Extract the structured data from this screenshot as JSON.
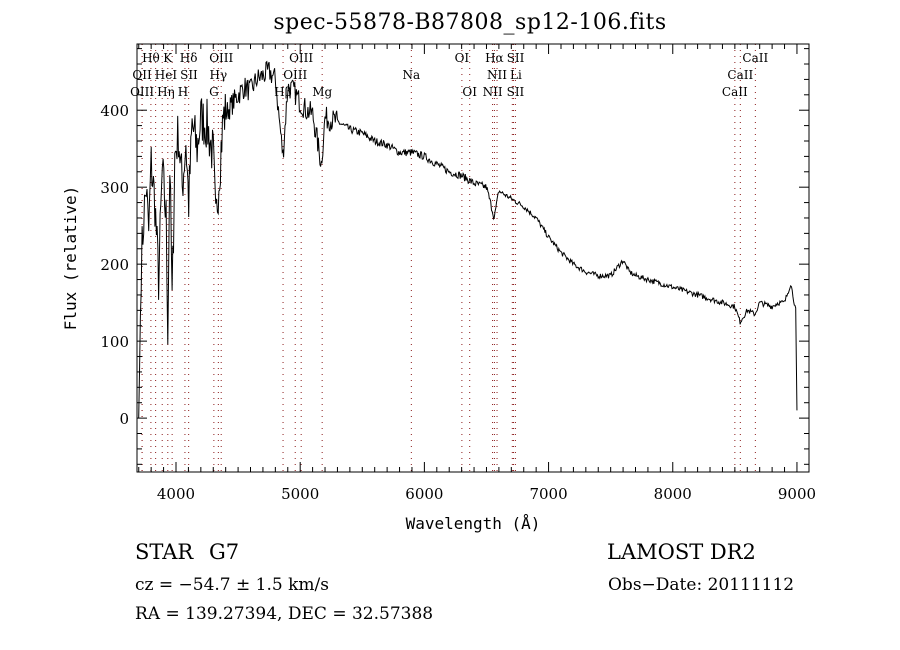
{
  "chart_data": {
    "type": "line",
    "title": "spec-55878-B87808_sp12-106.fits",
    "xlabel": "Wavelength (Å)",
    "ylabel": "Flux (relative)",
    "xlim": [
      3686,
      9097
    ],
    "ylim": [
      -70,
      486
    ],
    "xticks": [
      4000,
      5000,
      6000,
      7000,
      8000,
      9000
    ],
    "yticks": [
      0,
      100,
      200,
      300,
      400
    ],
    "grid": false,
    "series": [
      {
        "name": "flux",
        "color": "#000000",
        "x": [
          3700,
          3720,
          3740,
          3760,
          3780,
          3800,
          3830,
          3860,
          3890,
          3920,
          3934,
          3950,
          3969,
          3990,
          4020,
          4050,
          4080,
          4102,
          4130,
          4170,
          4200,
          4250,
          4300,
          4320,
          4340,
          4380,
          4420,
          4460,
          4500,
          4550,
          4600,
          4650,
          4700,
          4750,
          4800,
          4861,
          4900,
          4950,
          5000,
          5050,
          5100,
          5170,
          5200,
          5300,
          5400,
          5500,
          5600,
          5700,
          5800,
          5900,
          6000,
          6100,
          6200,
          6300,
          6400,
          6500,
          6563,
          6600,
          6700,
          6800,
          6900,
          7000,
          7100,
          7200,
          7300,
          7400,
          7500,
          7600,
          7650,
          7700,
          7800,
          7900,
          8000,
          8100,
          8200,
          8300,
          8400,
          8500,
          8542,
          8600,
          8662,
          8700,
          8800,
          8850,
          8900,
          8950,
          8990,
          9000
        ],
        "y": [
          0,
          200,
          260,
          300,
          240,
          330,
          280,
          180,
          320,
          260,
          120,
          330,
          150,
          340,
          370,
          300,
          360,
          280,
          380,
          350,
          390,
          380,
          340,
          250,
          300,
          390,
          400,
          410,
          420,
          430,
          425,
          440,
          445,
          450,
          440,
          340,
          430,
          425,
          410,
          400,
          395,
          330,
          390,
          385,
          375,
          370,
          360,
          355,
          345,
          345,
          340,
          330,
          320,
          315,
          305,
          300,
          260,
          295,
          285,
          275,
          260,
          235,
          215,
          200,
          190,
          185,
          185,
          205,
          190,
          185,
          180,
          175,
          170,
          165,
          160,
          155,
          150,
          145,
          125,
          140,
          135,
          150,
          145,
          150,
          150,
          175,
          140,
          10
        ]
      }
    ],
    "spectral_lines": [
      {
        "name": "Hθ",
        "wavelength": 3798,
        "row": 0
      },
      {
        "name": "K",
        "wavelength": 3934,
        "row": 0
      },
      {
        "name": "Hδ",
        "wavelength": 4102,
        "row": 0
      },
      {
        "name": "OIII",
        "wavelength": 4364,
        "row": 0
      },
      {
        "name": "OIII",
        "wavelength": 5008,
        "row": 0
      },
      {
        "name": "OI",
        "wavelength": 6302,
        "row": 0
      },
      {
        "name": "Hα",
        "wavelength": 6564,
        "row": 0
      },
      {
        "name": "SII",
        "wavelength": 6718,
        "row": 0
      },
      {
        "name": "CaII",
        "wavelength": 8665,
        "row": 0
      },
      {
        "name": "OII",
        "wavelength": 3727,
        "row": 1
      },
      {
        "name": "HeI",
        "wavelength": 3889,
        "row": 1
      },
      {
        "name": "SII",
        "wavelength": 4072,
        "row": 1
      },
      {
        "name": "Hγ",
        "wavelength": 4341,
        "row": 1
      },
      {
        "name": "OIII",
        "wavelength": 4960,
        "row": 1
      },
      {
        "name": "Na",
        "wavelength": 5895,
        "row": 1
      },
      {
        "name": "NII",
        "wavelength": 6585,
        "row": 1
      },
      {
        "name": "Li",
        "wavelength": 6708,
        "row": 1
      },
      {
        "name": "CaII",
        "wavelength": 8544,
        "row": 1
      },
      {
        "name": "OIII",
        "wavelength": 3727,
        "row": 2
      },
      {
        "name": "Hη",
        "wavelength": 3836,
        "row": 2
      },
      {
        "name": "H",
        "wavelength": 3969,
        "row": 2
      },
      {
        "name": "G",
        "wavelength": 4305,
        "row": 2
      },
      {
        "name": "Hβ",
        "wavelength": 4862,
        "row": 2
      },
      {
        "name": "Mg",
        "wavelength": 5177,
        "row": 2
      },
      {
        "name": "OI",
        "wavelength": 6365,
        "row": 2
      },
      {
        "name": "NII",
        "wavelength": 6549,
        "row": 2
      },
      {
        "name": "SII",
        "wavelength": 6733,
        "row": 2
      },
      {
        "name": "CaII",
        "wavelength": 8500,
        "row": 2
      }
    ],
    "line_marker_color": "#8b1a1a"
  },
  "info": {
    "object_class": "STAR",
    "subclass": "G7",
    "redshift": "cz = −54.7 ± 1.5 km/s",
    "coords": "RA = 139.27394, DEC =  32.57388",
    "survey": "LAMOST DR2",
    "obs_date": "Obs−Date: 20111112"
  }
}
